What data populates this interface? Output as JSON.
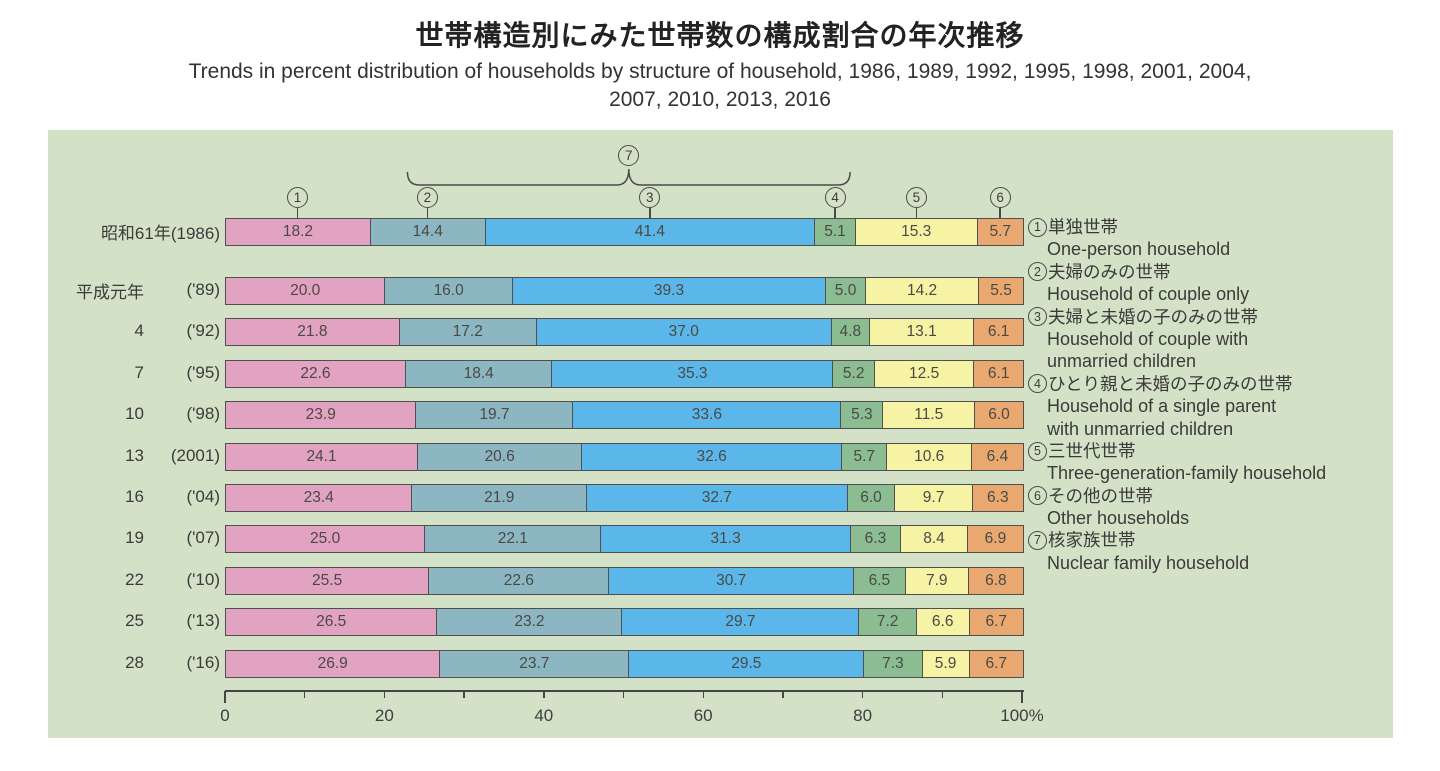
{
  "title": "世帯構造別にみた世帯数の構成割合の年次推移",
  "subtitle_lines": [
    "Trends in percent distribution of households by structure of household, 1986, 1989, 1992, 1995, 1998, 2001, 2004,",
    "2007, 2010, 2013, 2016"
  ],
  "panel_background": "#d3e2c6",
  "chart_data": {
    "type": "bar",
    "stacked": true,
    "orientation": "horizontal",
    "unit": "%",
    "xlim": [
      0,
      100
    ],
    "grid": false,
    "axis_tick_values": [
      0,
      20,
      40,
      60,
      80,
      100
    ],
    "axis_tick_labels": [
      "0",
      "20",
      "40",
      "60",
      "80",
      "100%"
    ],
    "axis_minor_step": 10,
    "segments": [
      {
        "num": "1",
        "color": "#e2a2c2",
        "name_en": "One-person household"
      },
      {
        "num": "2",
        "color": "#8cb6c2",
        "name_en": "Household of couple only"
      },
      {
        "num": "3",
        "color": "#5bb6e9",
        "name_en": "Household of couple with unmarried children"
      },
      {
        "num": "4",
        "color": "#8cbc92",
        "name_en": "Household of a single parent with unmarried children"
      },
      {
        "num": "5",
        "color": "#f7f3a5",
        "name_en": "Three-generation-family household"
      },
      {
        "num": "6",
        "color": "#e8a870",
        "name_en": "Other households"
      },
      {
        "num": "7",
        "name_en": "Nuclear family household",
        "note": "brace spanning segments 2-4"
      }
    ],
    "rows": [
      {
        "era": "昭和61年(1986)",
        "year": "",
        "values": [
          "18.2",
          "14.4",
          "41.4",
          "5.1",
          "15.3",
          "5.7"
        ]
      },
      {
        "era": "平成元年",
        "year": "('89)",
        "values": [
          "20.0",
          "16.0",
          "39.3",
          "5.0",
          "14.2",
          "5.5"
        ]
      },
      {
        "era": "4",
        "year": "('92)",
        "values": [
          "21.8",
          "17.2",
          "37.0",
          "4.8",
          "13.1",
          "6.1"
        ]
      },
      {
        "era": "7",
        "year": "('95)",
        "values": [
          "22.6",
          "18.4",
          "35.3",
          "5.2",
          "12.5",
          "6.1"
        ]
      },
      {
        "era": "10",
        "year": "('98)",
        "values": [
          "23.9",
          "19.7",
          "33.6",
          "5.3",
          "11.5",
          "6.0"
        ]
      },
      {
        "era": "13",
        "year": "(2001)",
        "values": [
          "24.1",
          "20.6",
          "32.6",
          "5.7",
          "10.6",
          "6.4"
        ]
      },
      {
        "era": "16",
        "year": "('04)",
        "values": [
          "23.4",
          "21.9",
          "32.7",
          "6.0",
          "9.7",
          "6.3"
        ]
      },
      {
        "era": "19",
        "year": "('07)",
        "values": [
          "25.0",
          "22.1",
          "31.3",
          "6.3",
          "8.4",
          "6.9"
        ]
      },
      {
        "era": "22",
        "year": "('10)",
        "values": [
          "25.5",
          "22.6",
          "30.7",
          "6.5",
          "7.9",
          "6.8"
        ]
      },
      {
        "era": "25",
        "year": "('13)",
        "values": [
          "26.5",
          "23.2",
          "29.7",
          "7.2",
          "6.6",
          "6.7"
        ]
      },
      {
        "era": "28",
        "year": "('16)",
        "values": [
          "26.9",
          "23.7",
          "29.5",
          "7.3",
          "5.9",
          "6.7"
        ]
      }
    ]
  },
  "legend": {
    "items": [
      {
        "ja": "単独世帯",
        "en_lines": [
          "One-person household"
        ]
      },
      {
        "ja": "夫婦のみの世帯",
        "en_lines": [
          "Household of couple only"
        ]
      },
      {
        "ja": "夫婦と未婚の子のみの世帯",
        "en_lines": [
          "Household of couple with",
          "unmarried children"
        ]
      },
      {
        "ja": "ひとり親と未婚の子のみの世帯",
        "en_lines": [
          "Household of a single parent",
          "with unmarried children"
        ]
      },
      {
        "ja": "三世代世帯",
        "en_lines": [
          "Three-generation-family household"
        ]
      },
      {
        "ja": "その他の世帯",
        "en_lines": [
          "Other households"
        ]
      },
      {
        "ja": "核家族世帯",
        "en_lines": [
          "Nuclear family household"
        ]
      }
    ]
  }
}
